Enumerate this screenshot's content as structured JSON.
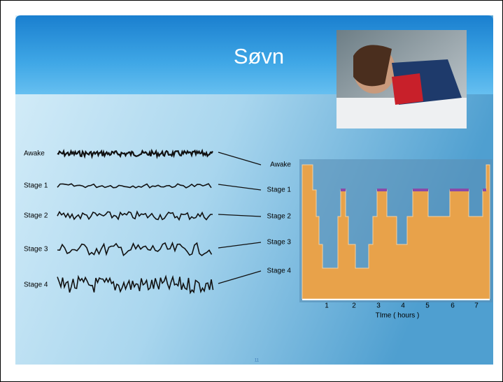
{
  "slide": {
    "title": "Søvn",
    "page_number": "11",
    "eeg_labels": [
      "Awake",
      "Stage 1",
      "Stage 2",
      "Stage 3",
      "Stage 4"
    ],
    "hypnogram": {
      "stage_labels": [
        "Awake",
        "Stage 1",
        "Stage 2",
        "Stage 3",
        "Stage 4"
      ],
      "x_ticks": [
        "1",
        "2",
        "3",
        "4",
        "5",
        "6",
        "7"
      ],
      "x_axis_label": "TIme ( hours )"
    }
  }
}
